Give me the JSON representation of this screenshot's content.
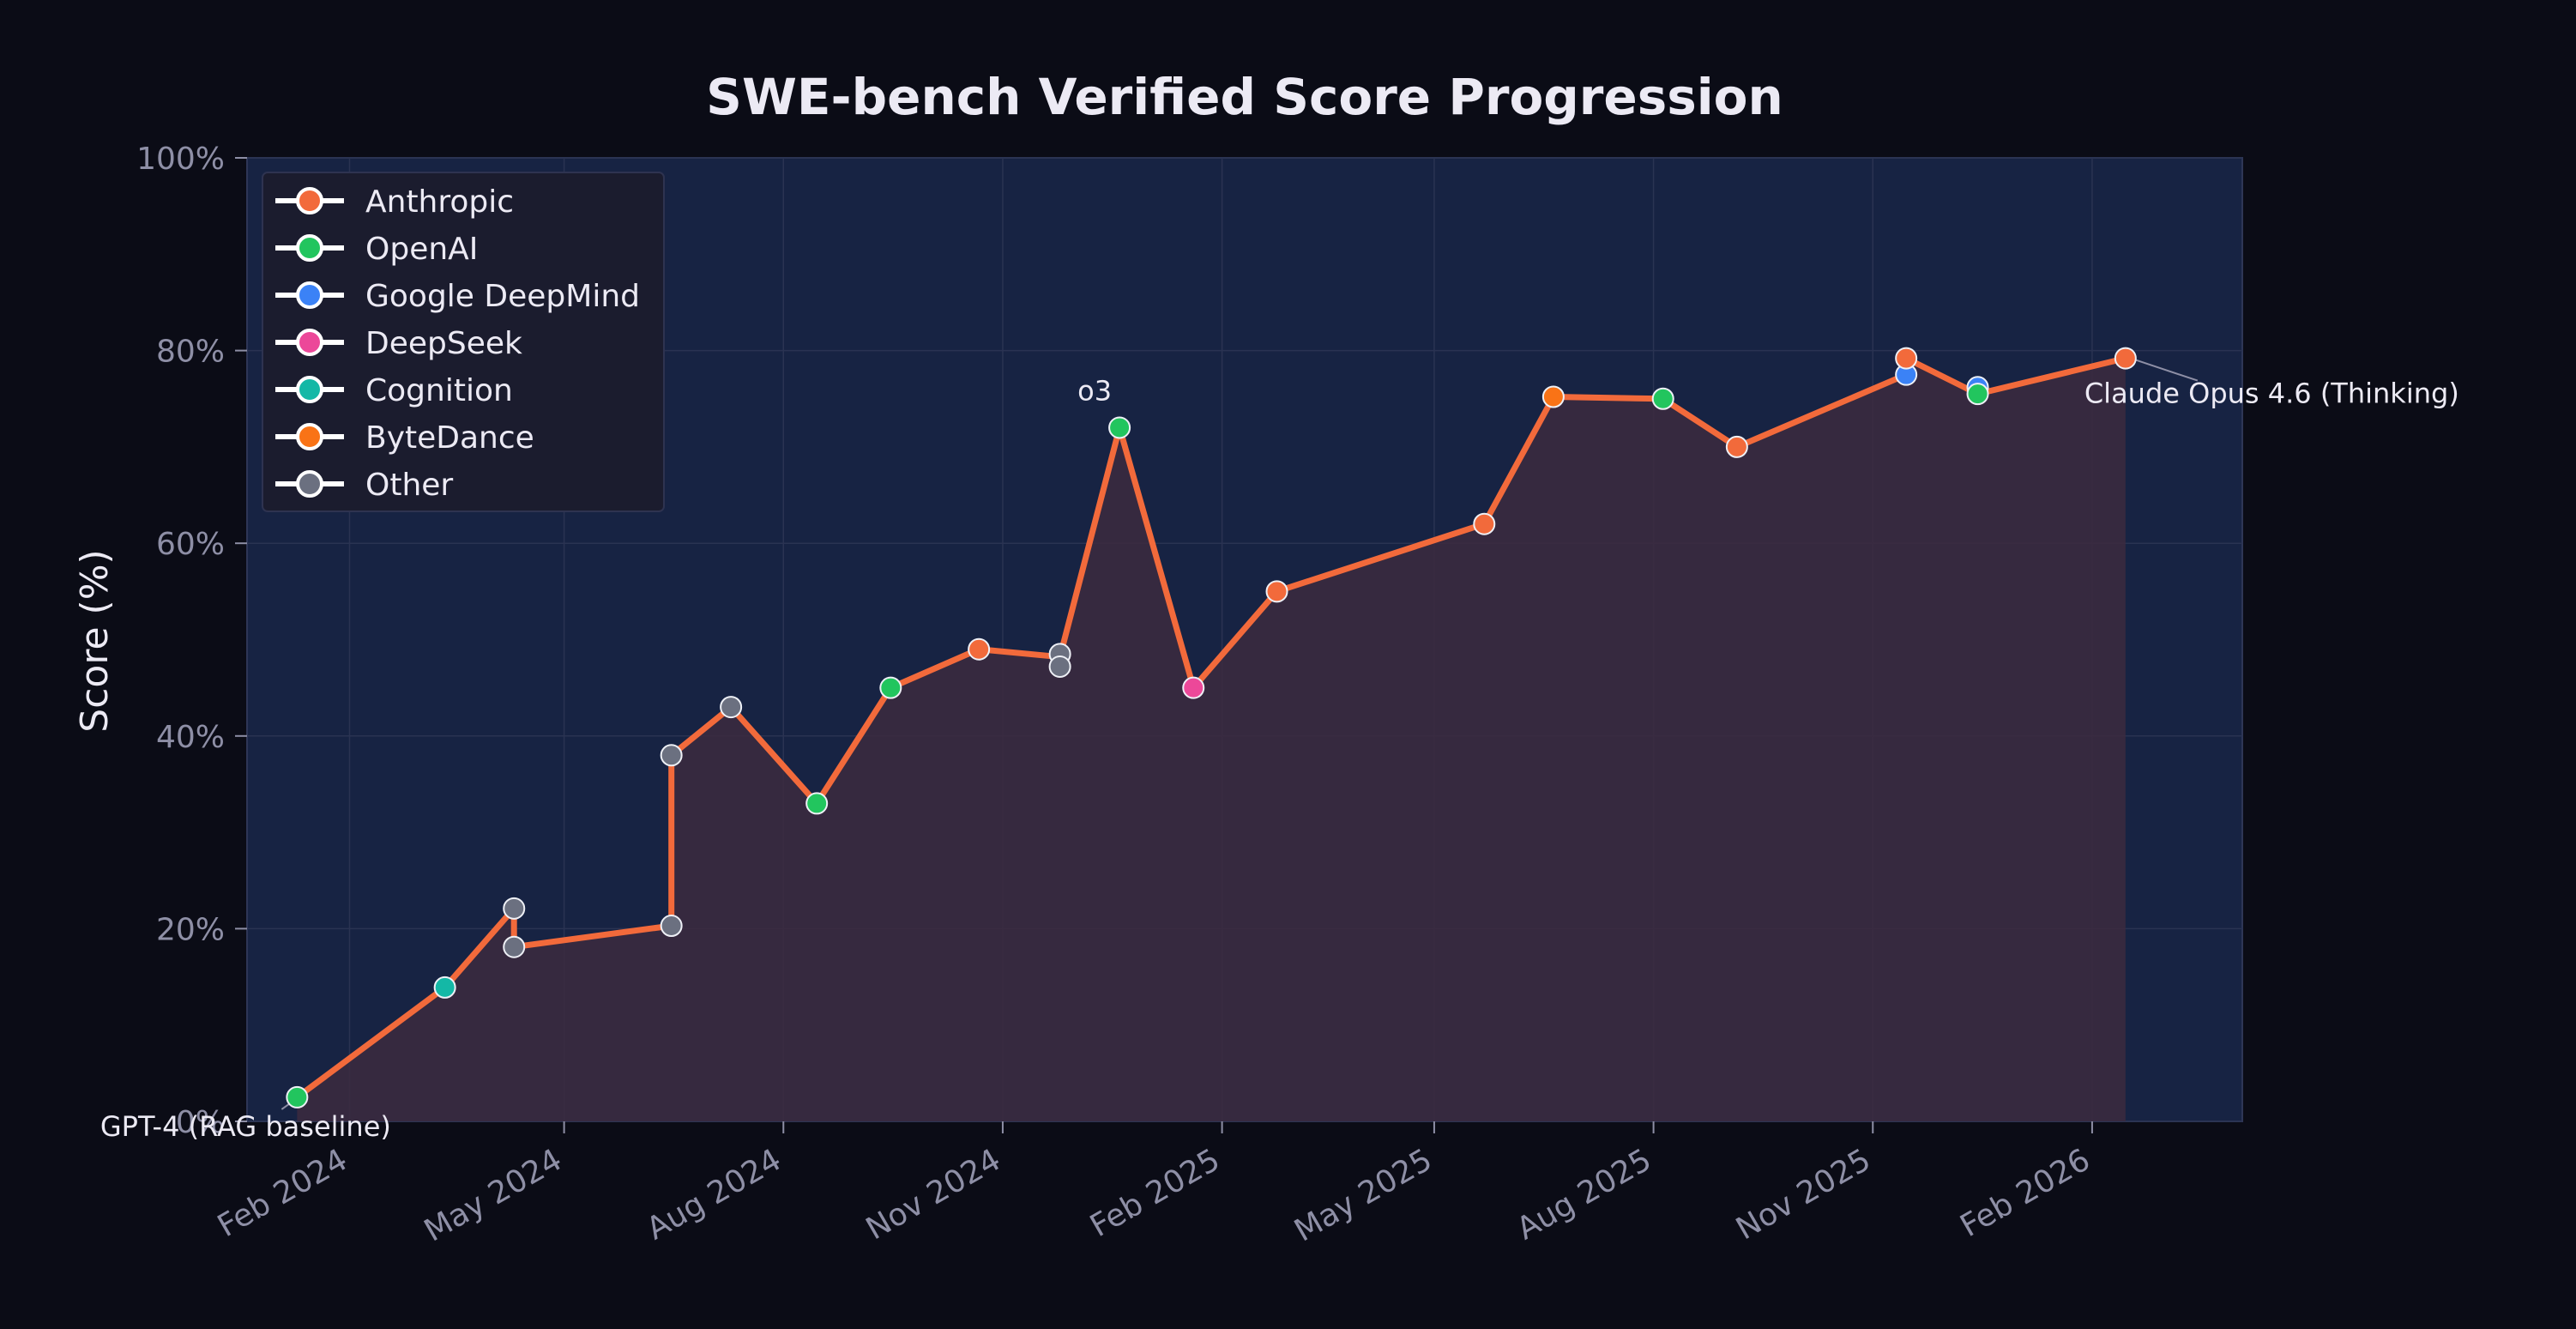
{
  "chart_data": {
    "type": "line",
    "title": "SWE-bench Verified Score Progression",
    "xlabel": "",
    "ylabel": "Score (%)",
    "x_start": "2023-12-20",
    "x_end": "2026-04-05",
    "ylim": [
      0,
      100
    ],
    "y_ticks": [
      {
        "value": 0,
        "label": "0%"
      },
      {
        "value": 20,
        "label": "20%"
      },
      {
        "value": 40,
        "label": "40%"
      },
      {
        "value": 60,
        "label": "60%"
      },
      {
        "value": 80,
        "label": "80%"
      },
      {
        "value": 100,
        "label": "100%"
      }
    ],
    "x_ticks": [
      {
        "date": "2024-02-01",
        "label": "Feb 2024"
      },
      {
        "date": "2024-05-01",
        "label": "May 2024"
      },
      {
        "date": "2024-08-01",
        "label": "Aug 2024"
      },
      {
        "date": "2024-11-01",
        "label": "Nov 2024"
      },
      {
        "date": "2025-02-01",
        "label": "Feb 2025"
      },
      {
        "date": "2025-05-01",
        "label": "May 2025"
      },
      {
        "date": "2025-08-01",
        "label": "Aug 2025"
      },
      {
        "date": "2025-11-01",
        "label": "Nov 2025"
      },
      {
        "date": "2026-02-01",
        "label": "Feb 2026"
      }
    ],
    "grid": true,
    "legend_position": "top-left",
    "frontier_color": "#f26a3b",
    "fill_color": "#3c2a3e",
    "plot_background": "#172343",
    "series": [
      {
        "name": "Anthropic",
        "color": "#f26a3b"
      },
      {
        "name": "OpenAI",
        "color": "#22c55e"
      },
      {
        "name": "Google DeepMind",
        "color": "#3b82f6"
      },
      {
        "name": "DeepSeek",
        "color": "#ec4899"
      },
      {
        "name": "Cognition",
        "color": "#14b8a6"
      },
      {
        "name": "ByteDance",
        "color": "#f97316"
      },
      {
        "name": "Other",
        "color": "#6b7080"
      }
    ],
    "points": [
      {
        "date": "2024-01-10",
        "y": 2.5,
        "org": "OpenAI"
      },
      {
        "date": "2024-03-12",
        "y": 13.9,
        "org": "Cognition"
      },
      {
        "date": "2024-04-10",
        "y": 22.1,
        "org": "Other"
      },
      {
        "date": "2024-04-10",
        "y": 18.1,
        "org": "Other"
      },
      {
        "date": "2024-06-15",
        "y": 20.3,
        "org": "Other"
      },
      {
        "date": "2024-06-15",
        "y": 38.0,
        "org": "Other"
      },
      {
        "date": "2024-07-10",
        "y": 43.0,
        "org": "Other"
      },
      {
        "date": "2024-08-15",
        "y": 33.0,
        "org": "OpenAI"
      },
      {
        "date": "2024-09-15",
        "y": 45.0,
        "org": "OpenAI"
      },
      {
        "date": "2024-10-22",
        "y": 49.0,
        "org": "Anthropic"
      },
      {
        "date": "2024-11-25",
        "y": 48.5,
        "org": "Other"
      },
      {
        "date": "2024-11-25",
        "y": 47.2,
        "org": "Other"
      },
      {
        "date": "2024-12-20",
        "y": 72.0,
        "org": "OpenAI"
      },
      {
        "date": "2025-01-20",
        "y": 45.0,
        "org": "DeepSeek"
      },
      {
        "date": "2025-02-24",
        "y": 55.0,
        "org": "Anthropic"
      },
      {
        "date": "2025-05-22",
        "y": 62.0,
        "org": "Anthropic"
      },
      {
        "date": "2025-06-20",
        "y": 75.2,
        "org": "ByteDance"
      },
      {
        "date": "2025-08-05",
        "y": 75.0,
        "org": "OpenAI"
      },
      {
        "date": "2025-09-05",
        "y": 70.0,
        "org": "Anthropic"
      },
      {
        "date": "2025-11-15",
        "y": 77.5,
        "org": "Google DeepMind"
      },
      {
        "date": "2025-11-15",
        "y": 79.2,
        "org": "Anthropic"
      },
      {
        "date": "2025-12-15",
        "y": 76.2,
        "org": "Google DeepMind"
      },
      {
        "date": "2025-12-15",
        "y": 75.5,
        "org": "OpenAI"
      },
      {
        "date": "2026-02-15",
        "y": 79.2,
        "org": "Anthropic"
      }
    ],
    "frontier_path": [
      {
        "date": "2024-01-10",
        "y": 2.5
      },
      {
        "date": "2024-03-12",
        "y": 13.9
      },
      {
        "date": "2024-04-10",
        "y": 22.1
      },
      {
        "date": "2024-04-10",
        "y": 18.1
      },
      {
        "date": "2024-06-15",
        "y": 20.3
      },
      {
        "date": "2024-06-15",
        "y": 38.0
      },
      {
        "date": "2024-07-10",
        "y": 43.0
      },
      {
        "date": "2024-08-15",
        "y": 33.0
      },
      {
        "date": "2024-09-15",
        "y": 45.0
      },
      {
        "date": "2024-10-22",
        "y": 49.0
      },
      {
        "date": "2024-11-25",
        "y": 48.2
      },
      {
        "date": "2024-12-20",
        "y": 72.0
      },
      {
        "date": "2025-01-20",
        "y": 45.0
      },
      {
        "date": "2025-02-24",
        "y": 55.0
      },
      {
        "date": "2025-05-22",
        "y": 62.0
      },
      {
        "date": "2025-06-20",
        "y": 75.2
      },
      {
        "date": "2025-08-05",
        "y": 75.0
      },
      {
        "date": "2025-09-05",
        "y": 70.0
      },
      {
        "date": "2025-11-15",
        "y": 77.5
      },
      {
        "date": "2025-11-15",
        "y": 79.2
      },
      {
        "date": "2025-12-15",
        "y": 75.5
      },
      {
        "date": "2026-02-15",
        "y": 79.2
      }
    ],
    "annotations": [
      {
        "text": "GPT-4 (RAG baseline)",
        "date": "2024-01-10",
        "y": 2.5
      },
      {
        "text": "o3",
        "date": "2024-12-20",
        "y": 72.0
      },
      {
        "text": "Claude Opus 4.6 (Thinking)",
        "date": "2026-02-15",
        "y": 79.2
      }
    ]
  }
}
